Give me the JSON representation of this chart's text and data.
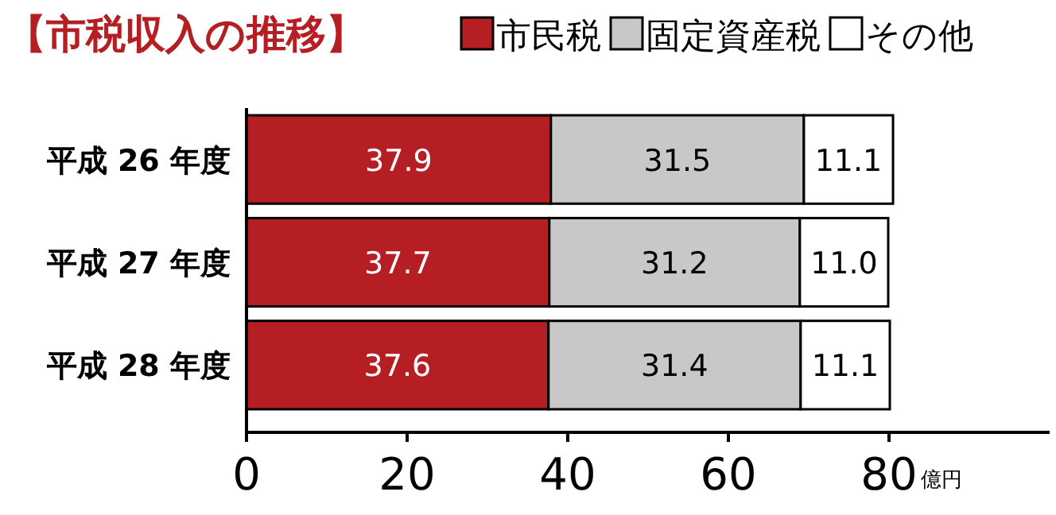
{
  "chart_data": {
    "type": "bar",
    "orientation": "horizontal",
    "stacked": true,
    "title": "【市税収入の推移】",
    "xlabel": "億円",
    "categories": [
      "平成 26 年度",
      "平成 27 年度",
      "平成 28 年度"
    ],
    "series": [
      {
        "name": "市民税",
        "color": "#b51f24",
        "values": [
          37.9,
          37.7,
          37.6
        ],
        "value_labels": [
          "37.9",
          "37.7",
          "37.6"
        ]
      },
      {
        "name": "固定資産税",
        "color": "#c8c8c8",
        "values": [
          31.5,
          31.2,
          31.4
        ],
        "value_labels": [
          "31.5",
          "31.2",
          "31.4"
        ]
      },
      {
        "name": "その他",
        "color": "#ffffff",
        "values": [
          11.1,
          11.0,
          11.1
        ],
        "value_labels": [
          "11.1",
          "11.0",
          "11.1"
        ]
      }
    ],
    "xlim": [
      0,
      100
    ],
    "xticks": [
      0,
      20,
      40,
      60,
      80
    ],
    "legend": "top right",
    "grid": false
  }
}
